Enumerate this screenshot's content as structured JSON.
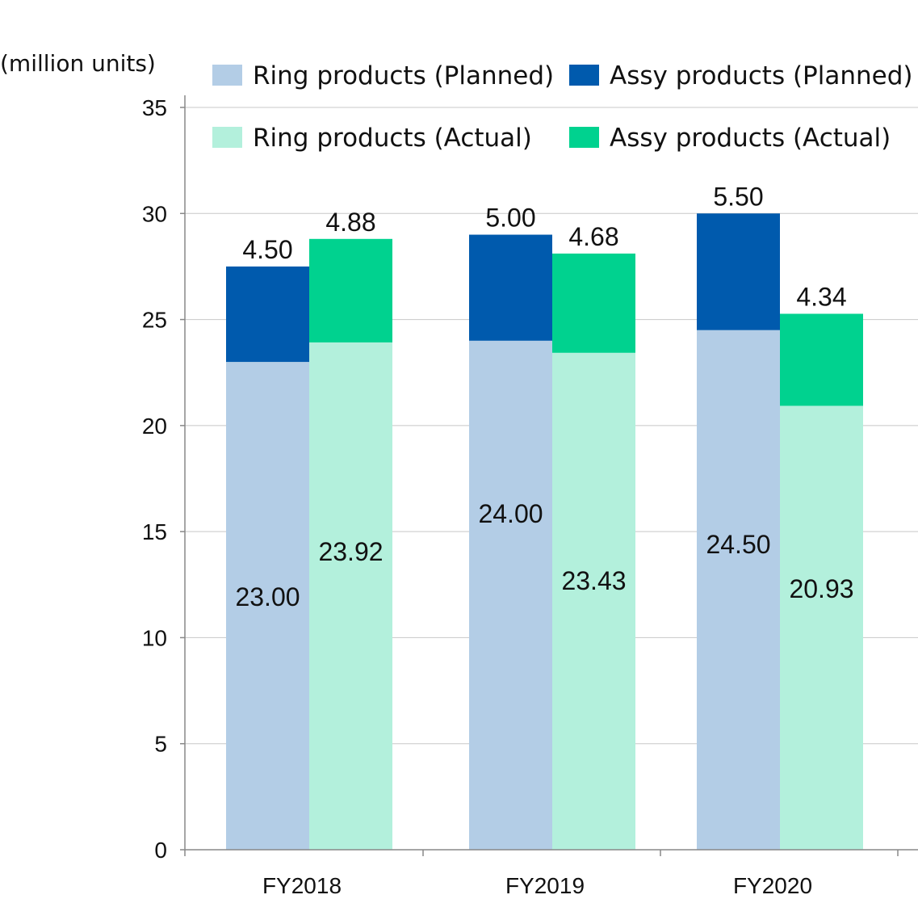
{
  "chart_data": {
    "type": "bar",
    "stacked": true,
    "unit_label": "(million units)",
    "categories": [
      "FY2018",
      "FY2019",
      "FY2020"
    ],
    "ylim": [
      0,
      35
    ],
    "y_ticks": [
      0,
      5,
      10,
      15,
      20,
      25,
      30,
      35
    ],
    "grid": true,
    "legend_position": "top",
    "groups": [
      {
        "name": "Planned",
        "stack": [
          {
            "name": "Ring products (Planned)",
            "color": "#b3cde6",
            "values": [
              23.0,
              24.0,
              24.5
            ],
            "labels": [
              "23.00",
              "24.00",
              "24.50"
            ]
          },
          {
            "name": "Assy products (Planned)",
            "color": "#005aad",
            "values": [
              4.5,
              5.0,
              5.5
            ],
            "labels": [
              "4.50",
              "5.00",
              "5.50"
            ]
          }
        ]
      },
      {
        "name": "Actual",
        "stack": [
          {
            "name": "Ring products (Actual)",
            "color": "#b3f0dc",
            "values": [
              23.92,
              23.43,
              20.93
            ],
            "labels": [
              "23.92",
              "23.43",
              "20.93"
            ]
          },
          {
            "name": "Assy products (Actual)",
            "color": "#00d28f",
            "values": [
              4.88,
              4.68,
              4.34
            ],
            "labels": [
              "4.88",
              "4.68",
              "4.34"
            ]
          }
        ]
      }
    ],
    "legend": [
      {
        "label": "Ring products (Planned)",
        "color": "#b3cde6"
      },
      {
        "label": "Assy products (Planned)",
        "color": "#005aad"
      },
      {
        "label": "Ring products (Actual)",
        "color": "#b3f0dc"
      },
      {
        "label": "Assy products (Actual)",
        "color": "#00d28f"
      }
    ]
  }
}
